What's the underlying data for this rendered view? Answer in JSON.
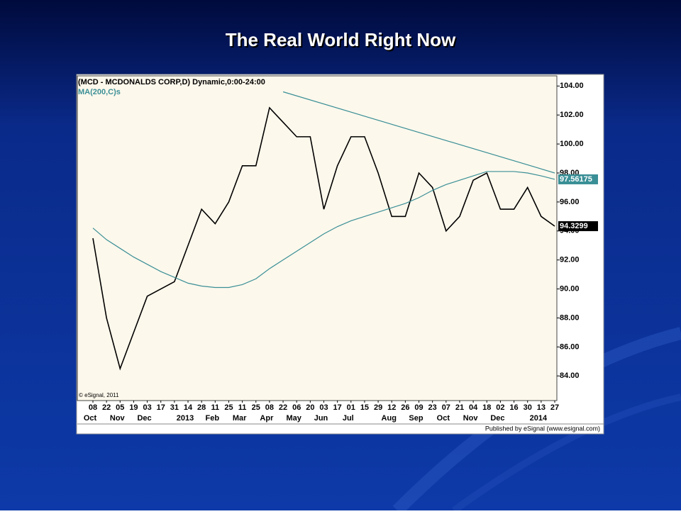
{
  "title": "The Real World Right Now",
  "chart_data": {
    "type": "line",
    "series": [
      {
        "name": "(MCD - MCDONALDS CORP,D) Dynamic,0:00-24:00",
        "color": "#000000",
        "values": [
          93.5,
          88,
          84.5,
          87,
          89.5,
          90,
          90.5,
          93,
          95.5,
          94.5,
          96,
          98.5,
          98.5,
          102.5,
          101.5,
          100.5,
          100.5,
          95.5,
          98.5,
          100.5,
          100.5,
          98,
          95,
          95,
          98,
          97,
          94,
          95,
          97.5,
          98,
          95.5,
          95.5,
          97,
          95,
          94.3299
        ]
      },
      {
        "name": "MA(200,C)s",
        "color": "#3a8f96",
        "values": [
          94.2,
          93.4,
          92.8,
          92.2,
          91.7,
          91.2,
          90.8,
          90.4,
          90.2,
          90.1,
          90.1,
          90.3,
          90.7,
          91.4,
          92.0,
          92.6,
          93.2,
          93.8,
          94.3,
          94.7,
          95.0,
          95.3,
          95.6,
          95.9,
          96.3,
          96.8,
          97.2,
          97.5,
          97.8,
          98.1,
          98.1,
          98.1,
          98.0,
          97.8,
          97.56175
        ]
      }
    ],
    "categories": [
      "08",
      "22",
      "05",
      "19",
      "03",
      "17",
      "31",
      "14",
      "28",
      "11",
      "25",
      "11",
      "25",
      "08",
      "22",
      "06",
      "20",
      "03",
      "17",
      "01",
      "15",
      "29",
      "12",
      "26",
      "09",
      "23",
      "07",
      "21",
      "04",
      "18",
      "02",
      "16",
      "30",
      "13",
      "27"
    ],
    "month_labels": [
      {
        "label": "Oct",
        "start": 0
      },
      {
        "label": "Nov",
        "start": 2
      },
      {
        "label": "Dec",
        "start": 4
      },
      {
        "label": "2013",
        "start": 7
      },
      {
        "label": "Feb",
        "start": 9
      },
      {
        "label": "Mar",
        "start": 11
      },
      {
        "label": "Apr",
        "start": 13
      },
      {
        "label": "May",
        "start": 15
      },
      {
        "label": "Jun",
        "start": 17
      },
      {
        "label": "Jul",
        "start": 19
      },
      {
        "label": "Aug",
        "start": 22
      },
      {
        "label": "Sep",
        "start": 24
      },
      {
        "label": "Oct",
        "start": 26
      },
      {
        "label": "Nov",
        "start": 28
      },
      {
        "label": "Dec",
        "start": 30
      },
      {
        "label": "2014",
        "start": 33
      }
    ],
    "trendline": {
      "start": 14,
      "end": 34,
      "values": [
        103.6,
        98.0
      ],
      "color": "#3a8f96"
    },
    "ylim": [
      82.3,
      104.7
    ],
    "yticks": [
      {
        "value": 84,
        "label": "84.00"
      },
      {
        "value": 86,
        "label": "86.00"
      },
      {
        "value": 88,
        "label": "88.00"
      },
      {
        "value": 90,
        "label": "90.00"
      },
      {
        "value": 92,
        "label": "92.00"
      },
      {
        "value": 94,
        "label": "94.00"
      },
      {
        "value": 96,
        "label": "96.00"
      },
      {
        "value": 98,
        "label": "98.00"
      },
      {
        "value": 100,
        "label": "100.00"
      },
      {
        "value": 102,
        "label": "102.00"
      },
      {
        "value": 104,
        "label": "104.00"
      }
    ],
    "copyright": "© eSignal, 2011",
    "footer": "Published by eSignal (www.esignal.com)"
  }
}
